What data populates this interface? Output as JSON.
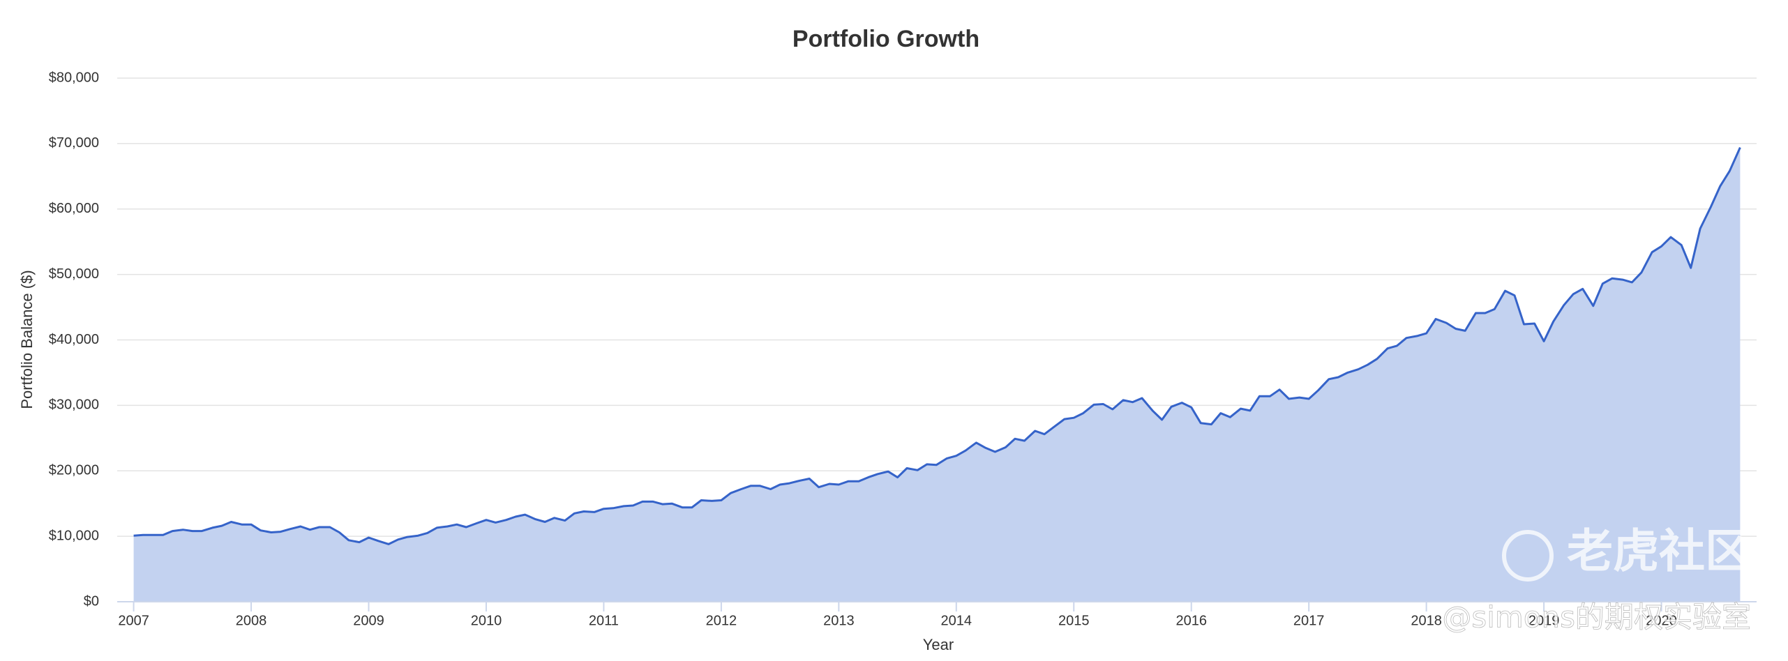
{
  "chart_data": {
    "type": "area",
    "title": "Portfolio Growth",
    "x_label": "Year",
    "y_label": "Portfolio Balance ($)",
    "watermark": [
      "老虎社区",
      "@simons的期权实验室"
    ],
    "grid": true,
    "color": "#3563c9",
    "fill_color": "#c3d2f0",
    "xlim": [
      2006.86,
      2020.81
    ],
    "xticks": [
      2007,
      2008,
      2009,
      2010,
      2011,
      2012,
      2013,
      2014,
      2015,
      2016,
      2017,
      2018,
      2019,
      2020
    ],
    "ylim": [
      0,
      80000
    ],
    "yticks": [
      {
        "value": 0,
        "label": "$0"
      },
      {
        "value": 10000,
        "label": "$10,000"
      },
      {
        "value": 20000,
        "label": "$20,000"
      },
      {
        "value": 30000,
        "label": "$30,000"
      },
      {
        "value": 40000,
        "label": "$40,000"
      },
      {
        "value": 50000,
        "label": "$50,000"
      },
      {
        "value": 60000,
        "label": "$60,000"
      },
      {
        "value": 70000,
        "label": "$70,000"
      },
      {
        "value": 80000,
        "label": "$80,000"
      }
    ],
    "x": [
      2007,
      2007.08,
      2007.17,
      2007.25,
      2007.33,
      2007.42,
      2007.5,
      2007.58,
      2007.67,
      2007.75,
      2007.83,
      2007.92,
      2008,
      2008.08,
      2008.17,
      2008.25,
      2008.33,
      2008.42,
      2008.5,
      2008.58,
      2008.67,
      2008.75,
      2008.83,
      2008.92,
      2009,
      2009.08,
      2009.17,
      2009.25,
      2009.33,
      2009.42,
      2009.5,
      2009.58,
      2009.67,
      2009.75,
      2009.83,
      2009.92,
      2010,
      2010.08,
      2010.17,
      2010.25,
      2010.33,
      2010.42,
      2010.5,
      2010.58,
      2010.67,
      2010.75,
      2010.83,
      2010.92,
      2011,
      2011.08,
      2011.17,
      2011.25,
      2011.33,
      2011.42,
      2011.5,
      2011.58,
      2011.67,
      2011.75,
      2011.83,
      2011.92,
      2012,
      2012.08,
      2012.17,
      2012.25,
      2012.33,
      2012.42,
      2012.5,
      2012.58,
      2012.67,
      2012.75,
      2012.83,
      2012.92,
      2013,
      2013.08,
      2013.17,
      2013.25,
      2013.33,
      2013.42,
      2013.5,
      2013.58,
      2013.67,
      2013.75,
      2013.83,
      2013.92,
      2014,
      2014.08,
      2014.17,
      2014.25,
      2014.33,
      2014.42,
      2014.5,
      2014.58,
      2014.67,
      2014.75,
      2014.83,
      2014.92,
      2015,
      2015.08,
      2015.17,
      2015.25,
      2015.33,
      2015.42,
      2015.5,
      2015.58,
      2015.67,
      2015.75,
      2015.83,
      2015.92,
      2016,
      2016.08,
      2016.17,
      2016.25,
      2016.33,
      2016.42,
      2016.5,
      2016.58,
      2016.67,
      2016.75,
      2016.83,
      2016.92,
      2017,
      2017.08,
      2017.17,
      2017.25,
      2017.33,
      2017.42,
      2017.5,
      2017.58,
      2017.67,
      2017.75,
      2017.83,
      2017.92,
      2018,
      2018.08,
      2018.17,
      2018.25,
      2018.33,
      2018.42,
      2018.5,
      2018.58,
      2018.67,
      2018.75,
      2018.83,
      2018.92,
      2019,
      2019.08,
      2019.17,
      2019.25,
      2019.33,
      2019.42,
      2019.5,
      2019.58,
      2019.67,
      2019.75,
      2019.83,
      2019.92,
      2020,
      2020.08,
      2020.17,
      2020.25,
      2020.33,
      2020.42,
      2020.5,
      2020.58,
      2020.67
    ],
    "values": [
      10100,
      10200,
      10200,
      10200,
      10800,
      11000,
      10800,
      10800,
      11300,
      11600,
      12200,
      11800,
      11800,
      10900,
      10600,
      10700,
      11100,
      11500,
      11000,
      11400,
      11400,
      10600,
      9400,
      9100,
      9800,
      9300,
      8800,
      9500,
      9900,
      10100,
      10500,
      11300,
      11500,
      11800,
      11400,
      12000,
      12500,
      12100,
      12500,
      13000,
      13300,
      12600,
      12200,
      12800,
      12400,
      13500,
      13800,
      13700,
      14200,
      14300,
      14600,
      14700,
      15300,
      15300,
      14900,
      15000,
      14400,
      14400,
      15500,
      15400,
      15500,
      16600,
      17200,
      17700,
      17700,
      17200,
      17900,
      18100,
      18500,
      18800,
      17500,
      18000,
      17900,
      18400,
      18400,
      19000,
      19500,
      19900,
      19000,
      20400,
      20100,
      21000,
      20900,
      21900,
      22300,
      23100,
      24300,
      23500,
      22900,
      23600,
      24900,
      24600,
      26100,
      25600,
      26700,
      27900,
      28100,
      28800,
      30100,
      30200,
      29400,
      30800,
      30500,
      31100,
      29200,
      27800,
      29800,
      30400,
      29700,
      27300,
      27100,
      28800,
      28200,
      29500,
      29200,
      31400,
      31400,
      32400,
      31000,
      31200,
      31000,
      32300,
      34000,
      34300,
      35000,
      35500,
      36200,
      37100,
      38700,
      39100,
      40300,
      40600,
      41000,
      43200,
      42600,
      41700,
      41400,
      44100,
      44100,
      44700,
      47500,
      46800,
      42400,
      42500,
      39800,
      42800,
      45300,
      47000,
      47800,
      45200,
      48600,
      49400,
      49200,
      48800,
      50300,
      53400,
      54300,
      55700,
      54500,
      51000,
      57000,
      60300,
      63500,
      65800,
      69400
    ]
  }
}
